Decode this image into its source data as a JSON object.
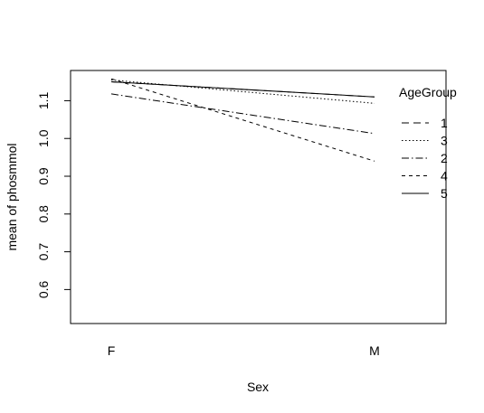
{
  "chart_data": {
    "type": "line",
    "title": "",
    "xlabel": "Sex",
    "ylabel": "mean of  phosmmol",
    "categories": [
      "F",
      "M"
    ],
    "yticks": [
      "0.6",
      "0.7",
      "0.8",
      "0.9",
      "1.0",
      "1.1"
    ],
    "ylim": [
      0.51,
      1.18
    ],
    "grid": false,
    "legend": {
      "title": "AgeGroup",
      "placement": "top-right",
      "entries": [
        "1",
        "3",
        "2",
        "4",
        "5"
      ]
    },
    "series": [
      {
        "name": "1",
        "dash": "8,5",
        "values": [
          1.15,
          1.11
        ]
      },
      {
        "name": "3",
        "dash": "1.5,2.5",
        "values": [
          1.155,
          1.093
        ]
      },
      {
        "name": "2",
        "dash": "8,3,1.5,3",
        "values": [
          1.118,
          1.013
        ]
      },
      {
        "name": "4",
        "dash": "4,4",
        "values": [
          1.158,
          0.94
        ]
      },
      {
        "name": "5",
        "dash": "",
        "values": [
          1.15,
          1.11
        ]
      }
    ]
  }
}
